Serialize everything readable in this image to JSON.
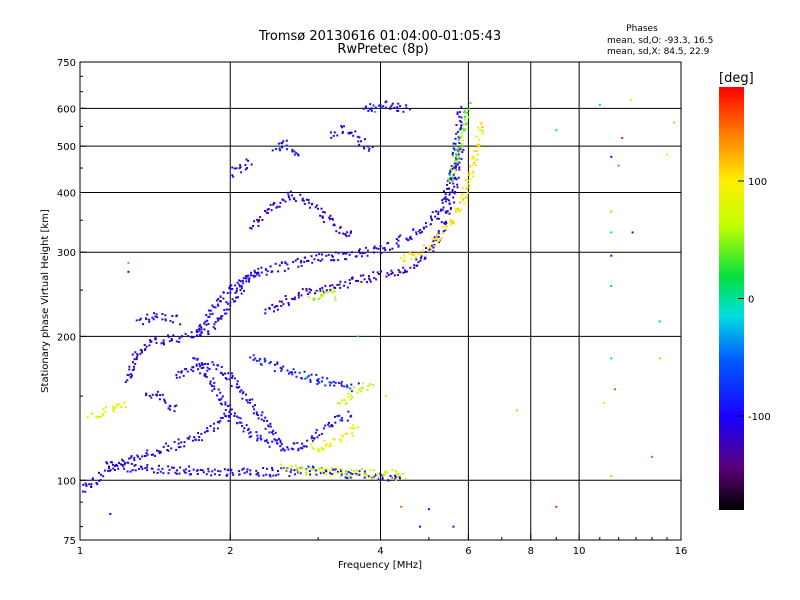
{
  "chart_data": {
    "type": "scatter",
    "title": "Tromsø 20130616 01:04:00-01:05:43",
    "subtitle": "RwPretec (8p)",
    "xlabel": "Frequency [MHz]",
    "ylabel": "Stationary phase Virtual Height [km]",
    "x_scale": "log",
    "y_scale": "log",
    "xlim": [
      1,
      16
    ],
    "ylim": [
      75,
      750
    ],
    "x_ticks": [
      1,
      2,
      4,
      6,
      8,
      10,
      16
    ],
    "x_tick_labels": [
      "1",
      "2",
      "4",
      "6",
      "8",
      "10",
      "16"
    ],
    "x_gridlines": [
      2,
      4,
      6,
      8,
      10
    ],
    "y_ticks": [
      75,
      100,
      200,
      300,
      400,
      500,
      600,
      750
    ],
    "y_tick_labels": [
      "75",
      "100",
      "200",
      "300",
      "400",
      "500",
      "600",
      "750"
    ],
    "y_gridlines": [
      100,
      200,
      300,
      400,
      500,
      600
    ],
    "grid": true,
    "stats": {
      "heading": "Phases",
      "lines": [
        "mean, sd,O: -93.3, 16.5",
        "mean, sd,X:  84.5, 22.9"
      ]
    },
    "colorbar": {
      "label": "[deg]",
      "range": [
        -180,
        180
      ],
      "ticks": [
        100,
        0,
        -100
      ],
      "tick_labels": [
        "100",
        "0",
        "-100"
      ],
      "colormap": "rainbow"
    },
    "traces": [
      {
        "x": [
          1.0,
          1.03,
          1.08,
          1.14,
          1.22,
          1.31,
          1.42,
          1.55,
          1.7,
          1.85,
          1.95,
          2.0
        ],
        "y": [
          95,
          97,
          100,
          104,
          108,
          112,
          115,
          118,
          122,
          128,
          135,
          140
        ],
        "phase": -105
      },
      {
        "x": [
          1.12,
          1.3,
          1.5,
          1.7,
          1.9,
          2.1,
          2.3,
          2.5,
          2.7,
          2.9,
          3.2,
          3.5,
          3.8,
          4.1,
          4.4
        ],
        "y": [
          108,
          106,
          105,
          105,
          104,
          104,
          104,
          104,
          104,
          105,
          104,
          103,
          103,
          102,
          102
        ],
        "phase": -105
      },
      {
        "x": [
          2.55,
          2.75,
          2.95,
          3.2,
          3.5,
          3.8,
          4.1,
          4.5
        ],
        "y": [
          106,
          105,
          104,
          104,
          104,
          103,
          103,
          102
        ],
        "phase": 70
      },
      {
        "x": [
          1.25,
          1.3,
          1.38,
          1.48,
          1.58,
          1.68,
          1.78,
          1.88,
          1.98,
          2.08,
          2.18,
          2.3
        ],
        "y": [
          160,
          185,
          195,
          197,
          198,
          200,
          205,
          215,
          230,
          248,
          262,
          275
        ],
        "phase": -110
      },
      {
        "x": [
          1.3,
          1.36,
          1.42,
          1.5,
          1.58
        ],
        "y": [
          215,
          218,
          220,
          219,
          216
        ],
        "phase": -110
      },
      {
        "x": [
          1.55,
          1.65,
          1.75,
          1.85,
          1.95,
          2.05,
          2.15,
          2.25,
          2.35,
          2.45,
          2.55
        ],
        "y": [
          165,
          170,
          172,
          175,
          168,
          160,
          150,
          140,
          132,
          125,
          118
        ],
        "phase": -105
      },
      {
        "x": [
          1.7,
          1.8,
          1.9,
          2.0,
          2.1,
          2.2,
          2.3,
          2.4,
          2.5,
          2.6,
          2.7,
          2.8,
          2.9,
          3.0,
          3.1,
          3.2,
          3.3,
          3.4,
          3.5
        ],
        "y": [
          180,
          165,
          150,
          140,
          132,
          126,
          122,
          120,
          118,
          117,
          117,
          118,
          121,
          125,
          128,
          131,
          134,
          136,
          138
        ],
        "phase": -100
      },
      {
        "x": [
          2.2,
          2.4,
          2.6,
          2.8,
          3.0,
          3.2,
          3.4,
          3.6
        ],
        "y": [
          180,
          175,
          170,
          165,
          162,
          160,
          158,
          156
        ],
        "phase": -85
      },
      {
        "x": [
          2.9,
          3.0,
          3.1,
          3.2,
          3.3,
          3.4,
          3.5,
          3.6
        ],
        "y": [
          118,
          117,
          118,
          120,
          122,
          125,
          127,
          130
        ],
        "phase": 90
      },
      {
        "x": [
          3.3,
          3.45,
          3.6,
          3.75,
          3.9
        ],
        "y": [
          145,
          150,
          155,
          157,
          158
        ],
        "phase": 70
      },
      {
        "x": [
          1.72,
          1.75,
          1.8,
          1.87,
          1.95,
          2.02,
          2.1,
          2.18,
          2.26,
          2.35,
          2.45,
          2.55,
          2.65,
          2.75,
          2.85,
          2.95,
          3.1,
          3.25,
          3.4,
          3.55,
          3.7,
          3.85,
          4.0,
          4.2,
          4.4,
          4.6,
          4.8,
          5.0,
          5.2,
          5.4,
          5.6,
          5.8
        ],
        "y": [
          200,
          210,
          220,
          232,
          245,
          255,
          263,
          268,
          272,
          275,
          278,
          280,
          282,
          285,
          288,
          290,
          292,
          294,
          296,
          298,
          300,
          302,
          305,
          310,
          318,
          325,
          335,
          345,
          360,
          390,
          450,
          600
        ],
        "phase": -100
      },
      {
        "x": [
          2.35,
          2.5,
          2.65,
          2.8,
          3.0,
          3.2,
          3.4,
          3.6,
          3.8,
          4.0,
          4.2,
          4.4,
          4.6,
          4.8,
          5.0,
          5.2,
          5.4,
          5.6,
          5.8
        ],
        "y": [
          225,
          232,
          240,
          246,
          250,
          255,
          258,
          262,
          265,
          268,
          271,
          275,
          280,
          288,
          300,
          320,
          350,
          400,
          500
        ],
        "phase": -120
      },
      {
        "x": [
          4.4,
          4.6,
          4.8,
          5.0,
          5.2,
          5.4,
          5.6,
          5.8,
          6.0,
          6.2,
          6.4
        ],
        "y": [
          290,
          295,
          300,
          308,
          318,
          332,
          350,
          380,
          420,
          480,
          560
        ],
        "phase": 100
      },
      {
        "x": [
          5.5,
          5.6,
          5.7,
          5.8,
          5.9,
          6.0
        ],
        "y": [
          420,
          450,
          480,
          520,
          560,
          610
        ],
        "phase": 40
      },
      {
        "x": [
          2.2,
          2.35,
          2.5,
          2.65,
          2.8,
          2.95,
          3.1,
          3.25,
          3.4,
          3.55
        ],
        "y": [
          340,
          360,
          380,
          395,
          385,
          370,
          355,
          340,
          330,
          325
        ],
        "phase": -115
      },
      {
        "x": [
          2.0,
          2.1,
          2.2
        ],
        "y": [
          440,
          450,
          465
        ],
        "phase": -100
      },
      {
        "x": [
          2.45,
          2.55,
          2.65,
          2.75
        ],
        "y": [
          490,
          505,
          500,
          480
        ],
        "phase": -100
      },
      {
        "x": [
          3.2,
          3.35,
          3.5,
          3.65,
          3.85
        ],
        "y": [
          530,
          545,
          540,
          510,
          495
        ],
        "phase": -110
      },
      {
        "x": [
          3.7,
          3.85,
          4.0,
          4.2,
          4.4,
          4.6
        ],
        "y": [
          590,
          605,
          610,
          608,
          600,
          590
        ],
        "phase": -100
      },
      {
        "x": [
          2.9,
          3.0,
          3.1,
          3.2,
          3.3
        ],
        "y": [
          240,
          245,
          248,
          246,
          242
        ],
        "phase": 60
      },
      {
        "x": [
          1.55,
          1.5,
          1.45,
          1.4,
          1.35
        ],
        "y": [
          140,
          145,
          150,
          152,
          150
        ],
        "phase": -105
      },
      {
        "x": [
          1.05,
          1.1,
          1.15,
          1.2,
          1.25
        ],
        "y": [
          135,
          138,
          140,
          142,
          143
        ],
        "phase": 85
      }
    ],
    "scatter": [
      {
        "x": 1.0,
        "y": 85,
        "phase": 150
      },
      {
        "x": 1.15,
        "y": 85,
        "phase": -100
      },
      {
        "x": 1.25,
        "y": 285,
        "phase": -20
      },
      {
        "x": 1.25,
        "y": 273,
        "phase": -100
      },
      {
        "x": 4.8,
        "y": 80,
        "phase": -100
      },
      {
        "x": 5.6,
        "y": 80,
        "phase": -100
      },
      {
        "x": 4.4,
        "y": 88,
        "phase": 150
      },
      {
        "x": 5.0,
        "y": 87,
        "phase": -100
      },
      {
        "x": 7.5,
        "y": 140,
        "phase": 120
      },
      {
        "x": 9.0,
        "y": 88,
        "phase": 170
      },
      {
        "x": 9.0,
        "y": 540,
        "phase": -20
      },
      {
        "x": 11.0,
        "y": 610,
        "phase": -20
      },
      {
        "x": 11.6,
        "y": 475,
        "phase": -100
      },
      {
        "x": 12.0,
        "y": 455,
        "phase": 150
      },
      {
        "x": 12.2,
        "y": 520,
        "phase": 170
      },
      {
        "x": 12.7,
        "y": 625,
        "phase": 100
      },
      {
        "x": 11.6,
        "y": 365,
        "phase": 120
      },
      {
        "x": 11.6,
        "y": 330,
        "phase": -20
      },
      {
        "x": 12.8,
        "y": 330,
        "phase": -130
      },
      {
        "x": 11.6,
        "y": 295,
        "phase": -100
      },
      {
        "x": 11.6,
        "y": 255,
        "phase": -20
      },
      {
        "x": 14.5,
        "y": 215,
        "phase": -20
      },
      {
        "x": 14.5,
        "y": 180,
        "phase": 120
      },
      {
        "x": 11.6,
        "y": 180,
        "phase": -20
      },
      {
        "x": 11.2,
        "y": 145,
        "phase": 60
      },
      {
        "x": 11.8,
        "y": 155,
        "phase": 150
      },
      {
        "x": 14.0,
        "y": 112,
        "phase": 150
      },
      {
        "x": 11.6,
        "y": 102,
        "phase": 120
      },
      {
        "x": 14.8,
        "y": 75,
        "phase": -100
      },
      {
        "x": 15.0,
        "y": 480,
        "phase": 100
      },
      {
        "x": 15.5,
        "y": 560,
        "phase": 120
      },
      {
        "x": 4.1,
        "y": 150,
        "phase": 80
      },
      {
        "x": 3.6,
        "y": 200,
        "phase": -20
      },
      {
        "x": 3.9,
        "y": 590,
        "phase": -20
      }
    ]
  }
}
